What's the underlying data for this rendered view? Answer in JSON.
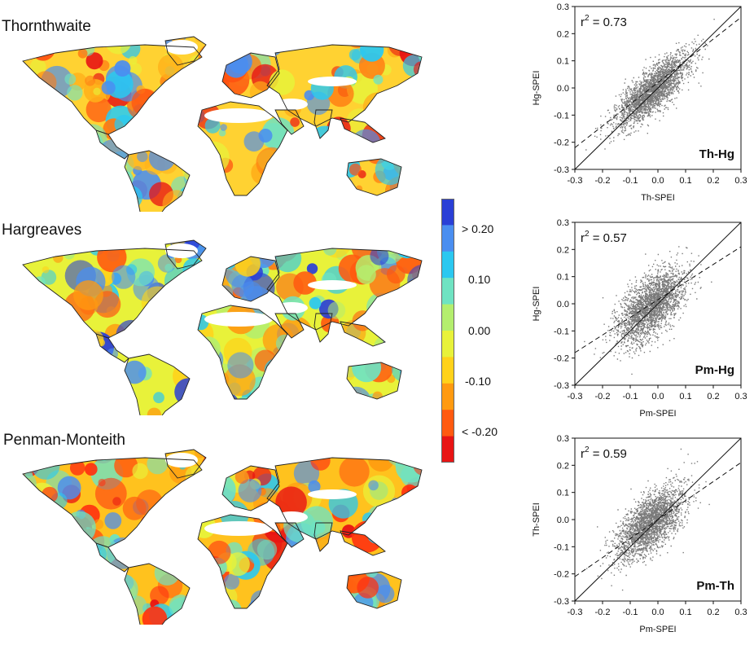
{
  "chart_data": [
    {
      "type": "heatmap",
      "title": "Thornthwaite",
      "note": "global map of SPEI values"
    },
    {
      "type": "heatmap",
      "title": "Hargreaves",
      "note": "global map of SPEI values"
    },
    {
      "type": "heatmap",
      "title": "Penman-Monteith",
      "note": "global map of SPEI values"
    },
    {
      "type": "scatter",
      "panel_label": "Th-Hg",
      "r2_text": "0.73",
      "xlabel": "Th-SPEI",
      "ylabel": "Hg-SPEI",
      "xlim": [
        -0.3,
        0.3
      ],
      "ylim": [
        -0.3,
        0.3
      ],
      "ticks": [
        "-0.3",
        "-0.2",
        "-0.1",
        "0.0",
        "0.1",
        "0.2",
        "0.3"
      ],
      "regression_line": {
        "x": [
          -0.3,
          0.3
        ],
        "y": [
          -0.22,
          0.26
        ]
      },
      "one_to_one_line": {
        "x": [
          -0.3,
          0.3
        ],
        "y": [
          -0.3,
          0.3
        ]
      }
    },
    {
      "type": "scatter",
      "panel_label": "Pm-Hg",
      "r2_text": "0.57",
      "xlabel": "Pm-SPEI",
      "ylabel": "Hg-SPEI",
      "xlim": [
        -0.3,
        0.3
      ],
      "ylim": [
        -0.3,
        0.3
      ],
      "ticks": [
        "-0.3",
        "-0.2",
        "-0.1",
        "0.0",
        "0.1",
        "0.2",
        "0.3"
      ],
      "regression_line": {
        "x": [
          -0.3,
          0.3
        ],
        "y": [
          -0.18,
          0.21
        ]
      },
      "one_to_one_line": {
        "x": [
          -0.3,
          0.3
        ],
        "y": [
          -0.3,
          0.3
        ]
      }
    },
    {
      "type": "scatter",
      "panel_label": "Pm-Th",
      "r2_text": "0.59",
      "xlabel": "Pm-SPEI",
      "ylabel": "Th-SPEI",
      "xlim": [
        -0.3,
        0.3
      ],
      "ylim": [
        -0.3,
        0.3
      ],
      "ticks": [
        "-0.3",
        "-0.2",
        "-0.1",
        "0.0",
        "0.1",
        "0.2",
        "0.3"
      ],
      "regression_line": {
        "x": [
          -0.3,
          0.3
        ],
        "y": [
          -0.21,
          0.21
        ]
      },
      "one_to_one_line": {
        "x": [
          -0.3,
          0.3
        ],
        "y": [
          -0.3,
          0.3
        ]
      }
    }
  ],
  "colorbar": {
    "labels": [
      "> 0.20",
      "0.10",
      "0.00",
      "-0.10",
      "< -0.20"
    ],
    "colors": [
      "#2a3fd6",
      "#4a8ef0",
      "#2bc8f0",
      "#6fe3c2",
      "#b4ee6e",
      "#e8f23a",
      "#ffd21a",
      "#ff9a10",
      "#ff5a10",
      "#e81414"
    ]
  },
  "colors": {
    "point": "#7a7a7a",
    "line": "#000000",
    "land": "#ffd03a",
    "desert": "#ffffff",
    "positive": "#3aa0e8",
    "negative": "#ff5a18"
  }
}
